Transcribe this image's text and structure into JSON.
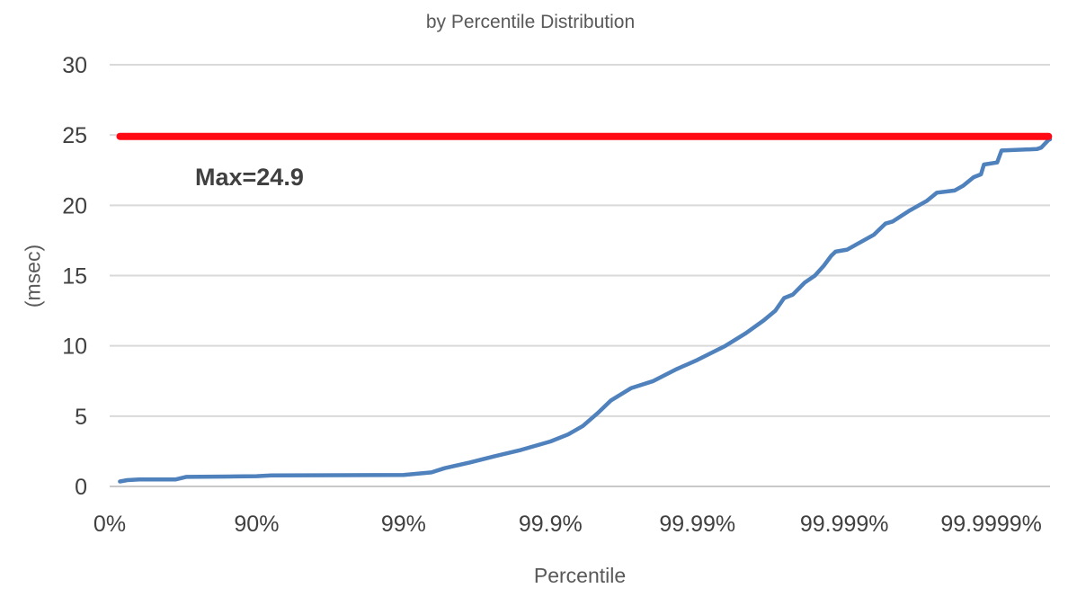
{
  "chart_data": {
    "type": "line",
    "title": "by Percentile Distribution",
    "xlabel": "Percentile",
    "ylabel": "(msec)",
    "x_scale": "log10(1/(1-percentile)) decades",
    "x_tick_labels": [
      "0%",
      "90%",
      "99%",
      "99.9%",
      "99.99%",
      "99.999%",
      "99.9999%"
    ],
    "x_tick_decades": [
      0,
      1,
      2,
      3,
      4,
      5,
      6
    ],
    "x_range_decades": [
      0,
      6.4
    ],
    "ylim": [
      0,
      30
    ],
    "y_ticks": [
      0,
      5,
      10,
      15,
      20,
      25,
      30
    ],
    "grid": "horizontal",
    "legend": "none",
    "max_line": {
      "value": 24.9,
      "label": "Max=24.9",
      "color": "#ff0a14",
      "start_decade": 0.07,
      "end_decade": 6.39
    },
    "series": [
      {
        "name": "latency-by-percentile",
        "color": "#4f81bd",
        "points_decade_msec": [
          [
            0.07,
            0.35
          ],
          [
            0.12,
            0.45
          ],
          [
            0.2,
            0.5
          ],
          [
            0.45,
            0.5
          ],
          [
            0.52,
            0.68
          ],
          [
            0.85,
            0.71
          ],
          [
            1.0,
            0.73
          ],
          [
            1.1,
            0.78
          ],
          [
            1.6,
            0.8
          ],
          [
            2.0,
            0.82
          ],
          [
            2.19,
            1.0
          ],
          [
            2.28,
            1.3
          ],
          [
            2.45,
            1.7
          ],
          [
            2.62,
            2.15
          ],
          [
            2.8,
            2.6
          ],
          [
            3.0,
            3.2
          ],
          [
            3.12,
            3.7
          ],
          [
            3.22,
            4.3
          ],
          [
            3.32,
            5.2
          ],
          [
            3.41,
            6.1
          ],
          [
            3.55,
            7.0
          ],
          [
            3.7,
            7.5
          ],
          [
            3.85,
            8.3
          ],
          [
            4.0,
            9.0
          ],
          [
            4.19,
            10.0
          ],
          [
            4.33,
            10.9
          ],
          [
            4.45,
            11.8
          ],
          [
            4.53,
            12.5
          ],
          [
            4.59,
            13.4
          ],
          [
            4.65,
            13.65
          ],
          [
            4.73,
            14.5
          ],
          [
            4.8,
            15.0
          ],
          [
            4.86,
            15.7
          ],
          [
            4.91,
            16.4
          ],
          [
            4.94,
            16.7
          ],
          [
            5.02,
            16.85
          ],
          [
            5.08,
            17.2
          ],
          [
            5.2,
            17.9
          ],
          [
            5.28,
            18.7
          ],
          [
            5.33,
            18.85
          ],
          [
            5.44,
            19.6
          ],
          [
            5.56,
            20.3
          ],
          [
            5.63,
            20.9
          ],
          [
            5.75,
            21.05
          ],
          [
            5.81,
            21.4
          ],
          [
            5.88,
            22.0
          ],
          [
            5.93,
            22.2
          ],
          [
            5.95,
            22.9
          ],
          [
            6.04,
            23.05
          ],
          [
            6.07,
            23.9
          ],
          [
            6.31,
            24.0
          ],
          [
            6.34,
            24.1
          ],
          [
            6.39,
            24.65
          ],
          [
            6.4,
            24.7
          ]
        ]
      }
    ],
    "colors": {
      "grid": "#d9d9d9",
      "baseline": "#c9c9c9",
      "tick_text": "#404040",
      "title_text": "#595959"
    }
  }
}
